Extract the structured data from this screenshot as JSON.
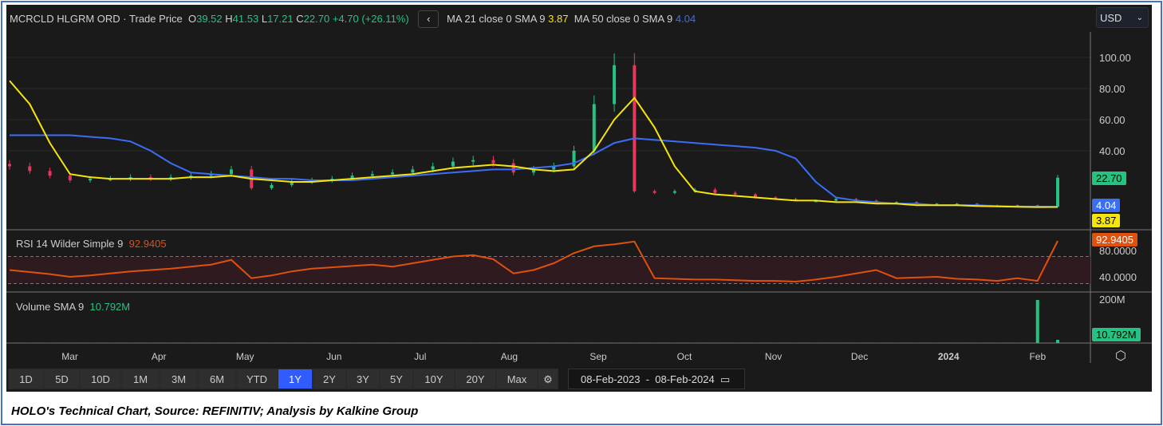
{
  "header": {
    "instrument": "MCRCLD HLGRM ORD",
    "separator": "·",
    "price_type": "Trade Price",
    "open_label": "O",
    "open": "39.52",
    "high_label": "H",
    "high": "41.53",
    "low_label": "L",
    "low": "17.21",
    "close_label": "C",
    "close": "22.70",
    "change": "+4.70 (+26.11%)",
    "back_icon": "chevron-left-icon",
    "ma21_label": "MA 21 close 0 SMA 9",
    "ma21_value": "3.87",
    "ma50_label": "MA 50 close 0 SMA 9",
    "ma50_value": "4.04"
  },
  "currency": {
    "selected": "USD"
  },
  "rsi": {
    "label": "RSI 14 Wilder Simple 9",
    "value": "92.9405",
    "ticks": [
      "80.0000",
      "40.0000"
    ]
  },
  "volume": {
    "label": "Volume SMA 9",
    "value": "10.792M",
    "ticks": [
      "200M"
    ]
  },
  "range_buttons": [
    "1D",
    "5D",
    "10D",
    "1M",
    "3M",
    "6M",
    "YTD",
    "1Y",
    "2Y",
    "3Y",
    "5Y",
    "10Y",
    "20Y",
    "Max"
  ],
  "active_range": "1Y",
  "date_range": {
    "from": "08-Feb-2023",
    "sep": "-",
    "to": "08-Feb-2024"
  },
  "caption": "HOLO's Technical Chart, Source: REFINITIV; Analysis by Kalkine Group",
  "colors": {
    "up": "#26c281",
    "down": "#e8385a",
    "ma21": "#f5e50a",
    "ma50": "#3b6df5",
    "rsi": "#e0510e"
  },
  "chart_data": {
    "type": "candlestick",
    "start_date": "2023-02-08",
    "end_date": "2024-02-08",
    "interval": "weekly",
    "x_ticks": [
      {
        "label": "Mar",
        "date": "2023-03-01"
      },
      {
        "label": "Apr",
        "date": "2023-04-01"
      },
      {
        "label": "May",
        "date": "2023-05-01"
      },
      {
        "label": "Jun",
        "date": "2023-06-01"
      },
      {
        "label": "Jul",
        "date": "2023-07-01"
      },
      {
        "label": "Aug",
        "date": "2023-08-01"
      },
      {
        "label": "Sep",
        "date": "2023-09-01"
      },
      {
        "label": "Oct",
        "date": "2023-10-01"
      },
      {
        "label": "Nov",
        "date": "2023-11-01"
      },
      {
        "label": "Dec",
        "date": "2023-12-01"
      },
      {
        "label": "2024",
        "date": "2024-01-01"
      },
      {
        "label": "Feb",
        "date": "2024-02-01"
      }
    ],
    "y_ticks": [
      "100.00",
      "80.00",
      "60.00",
      "40.00"
    ],
    "ylim": [
      0,
      110
    ],
    "close": [
      30,
      27,
      24,
      21,
      22,
      22,
      23,
      22,
      23,
      24,
      25,
      28,
      16,
      18,
      20,
      21,
      22,
      24,
      25,
      26,
      28,
      30,
      33,
      34,
      32,
      26,
      28,
      30,
      40,
      70,
      95,
      14,
      13,
      14,
      15,
      13,
      12,
      10,
      9,
      8,
      8,
      9,
      8,
      7,
      7,
      6,
      6,
      6,
      5,
      5,
      5,
      4,
      22.7
    ],
    "series": [
      {
        "name": "MA 21 close 0 SMA 9",
        "values": [
          85,
          70,
          45,
          25,
          23,
          22,
          22,
          22,
          22,
          23,
          23,
          24,
          22,
          21,
          20,
          20,
          21,
          22,
          23,
          24,
          25,
          27,
          29,
          30,
          31,
          30,
          28,
          27,
          28,
          40,
          60,
          74,
          55,
          30,
          14,
          12,
          11,
          10,
          9,
          8,
          8,
          7,
          7,
          6,
          6,
          5,
          5,
          5,
          4.5,
          4.2,
          4,
          3.8,
          3.87
        ]
      },
      {
        "name": "MA 50 close 0 SMA 9",
        "values": [
          50,
          50,
          50,
          50,
          49,
          48,
          46,
          40,
          32,
          26,
          25,
          24,
          23,
          22,
          22,
          21,
          21,
          21,
          22,
          23,
          24,
          25,
          26,
          27,
          28,
          28,
          29,
          30,
          32,
          38,
          45,
          48,
          47,
          46,
          45,
          44,
          43,
          42,
          40,
          35,
          20,
          10,
          8,
          7,
          6,
          6,
          5,
          5,
          5,
          4.5,
          4.2,
          4.1,
          4.04
        ]
      },
      {
        "name": "RSI 14 Wilder Simple 9",
        "values": [
          50,
          47,
          44,
          40,
          42,
          45,
          48,
          50,
          52,
          55,
          58,
          65,
          38,
          42,
          48,
          52,
          54,
          56,
          58,
          55,
          60,
          65,
          70,
          72,
          66,
          45,
          50,
          60,
          75,
          85,
          88,
          92,
          38,
          37,
          36,
          36,
          35,
          34,
          34,
          33,
          36,
          40,
          45,
          50,
          38,
          39,
          40,
          37,
          36,
          34,
          38,
          34,
          92.94
        ]
      }
    ],
    "rsi_bands": [
      70,
      30
    ],
    "volume_m": [
      1,
      1,
      1,
      1,
      1,
      1,
      1,
      1,
      1,
      1,
      1,
      1,
      1,
      1,
      1,
      1,
      1,
      1,
      1,
      1,
      1,
      1,
      1,
      1,
      1,
      1,
      1,
      1,
      1,
      1,
      1,
      1,
      1,
      1,
      1,
      1,
      1,
      1,
      1,
      1,
      1,
      1,
      1,
      1,
      1,
      1,
      1,
      1,
      1,
      1,
      1,
      200,
      15
    ]
  }
}
